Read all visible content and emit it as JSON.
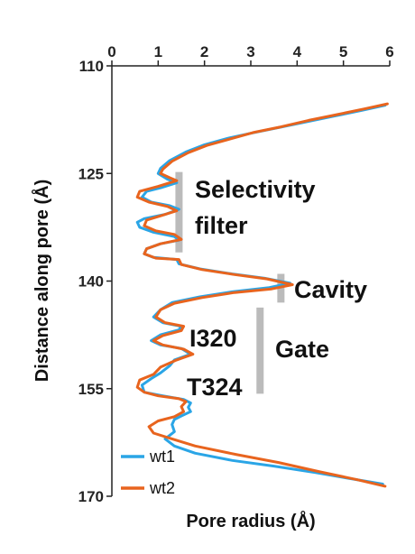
{
  "chart_data": {
    "type": "line",
    "xlabel": "Pore radius (Å)",
    "ylabel": "Distance along pore (Å)",
    "xlim": [
      0,
      6
    ],
    "ylim": [
      110,
      170
    ],
    "x_ticks": [
      "0",
      "1",
      "2",
      "3",
      "4",
      "5",
      "6"
    ],
    "y_ticks": [
      "110",
      "125",
      "140",
      "155",
      "170"
    ],
    "x_tick_values": [
      0,
      1,
      2,
      3,
      4,
      5,
      6
    ],
    "y_tick_values": [
      110,
      125,
      140,
      155,
      170
    ],
    "x_axis_position": "top",
    "y_inverted": true,
    "grid": false,
    "legend_position": "bottom-left",
    "series": [
      {
        "name": "wt1",
        "color": "#2aa5e6",
        "points": [
          [
            5.9,
            115.5
          ],
          [
            5.4,
            116.2
          ],
          [
            4.8,
            117.0
          ],
          [
            4.2,
            117.8
          ],
          [
            3.6,
            118.6
          ],
          [
            3.0,
            119.4
          ],
          [
            2.5,
            120.1
          ],
          [
            2.0,
            121.0
          ],
          [
            1.6,
            122.0
          ],
          [
            1.25,
            123.2
          ],
          [
            1.05,
            124.3
          ],
          [
            1.0,
            125.0
          ],
          [
            1.2,
            125.8
          ],
          [
            1.4,
            126.3
          ],
          [
            1.05,
            127.0
          ],
          [
            0.75,
            127.5
          ],
          [
            0.65,
            128.3
          ],
          [
            0.85,
            129.0
          ],
          [
            1.25,
            129.5
          ],
          [
            1.45,
            130.0
          ],
          [
            1.15,
            130.7
          ],
          [
            0.7,
            131.3
          ],
          [
            0.55,
            131.8
          ],
          [
            0.6,
            132.5
          ],
          [
            0.9,
            133.2
          ],
          [
            1.35,
            133.8
          ],
          [
            1.45,
            134.3
          ],
          [
            1.05,
            134.8
          ],
          [
            0.75,
            135.5
          ],
          [
            0.7,
            136.2
          ],
          [
            0.9,
            136.7
          ],
          [
            1.4,
            137.0
          ],
          [
            1.45,
            137.6
          ],
          [
            1.9,
            138.3
          ],
          [
            2.6,
            139.0
          ],
          [
            3.3,
            139.6
          ],
          [
            3.85,
            140.3
          ],
          [
            3.4,
            140.9
          ],
          [
            2.6,
            141.5
          ],
          [
            1.9,
            142.2
          ],
          [
            1.3,
            143.0
          ],
          [
            1.05,
            144.0
          ],
          [
            0.9,
            145.0
          ],
          [
            1.1,
            145.8
          ],
          [
            1.5,
            146.3
          ],
          [
            1.45,
            146.8
          ],
          [
            1.05,
            147.5
          ],
          [
            0.85,
            148.3
          ],
          [
            1.05,
            148.9
          ],
          [
            1.5,
            149.4
          ],
          [
            1.7,
            150.2
          ],
          [
            1.35,
            151.0
          ],
          [
            1.25,
            151.8
          ],
          [
            1.05,
            152.8
          ],
          [
            0.85,
            153.6
          ],
          [
            0.65,
            154.5
          ],
          [
            0.7,
            155.5
          ],
          [
            1.1,
            156.0
          ],
          [
            1.55,
            156.5
          ],
          [
            1.7,
            157.0
          ],
          [
            1.65,
            157.6
          ],
          [
            1.7,
            158.2
          ],
          [
            1.5,
            158.8
          ],
          [
            1.35,
            159.3
          ],
          [
            1.3,
            160.0
          ],
          [
            1.35,
            161.0
          ],
          [
            1.15,
            162.0
          ],
          [
            1.35,
            163.0
          ],
          [
            1.8,
            164.0
          ],
          [
            2.6,
            165.0
          ],
          [
            3.5,
            165.8
          ],
          [
            4.4,
            166.7
          ],
          [
            5.2,
            167.6
          ],
          [
            5.85,
            168.3
          ]
        ]
      },
      {
        "name": "wt2",
        "color": "#e8641e",
        "points": [
          [
            5.95,
            115.3
          ],
          [
            5.45,
            116.0
          ],
          [
            4.85,
            116.8
          ],
          [
            4.25,
            117.6
          ],
          [
            3.65,
            118.5
          ],
          [
            3.05,
            119.3
          ],
          [
            2.55,
            120.2
          ],
          [
            2.05,
            121.1
          ],
          [
            1.65,
            122.1
          ],
          [
            1.3,
            123.3
          ],
          [
            1.1,
            124.4
          ],
          [
            1.05,
            125.0
          ],
          [
            1.25,
            125.6
          ],
          [
            1.4,
            126.0
          ],
          [
            1.0,
            126.8
          ],
          [
            0.6,
            127.5
          ],
          [
            0.55,
            128.3
          ],
          [
            0.8,
            129.0
          ],
          [
            1.2,
            129.6
          ],
          [
            1.4,
            130.2
          ],
          [
            1.1,
            130.8
          ],
          [
            0.75,
            131.5
          ],
          [
            0.7,
            132.3
          ],
          [
            0.95,
            133.0
          ],
          [
            1.35,
            133.5
          ],
          [
            1.5,
            134.2
          ],
          [
            1.05,
            134.8
          ],
          [
            0.75,
            135.5
          ],
          [
            0.7,
            136.2
          ],
          [
            0.95,
            136.8
          ],
          [
            1.45,
            137.0
          ],
          [
            1.5,
            137.7
          ],
          [
            1.95,
            138.4
          ],
          [
            2.65,
            139.1
          ],
          [
            3.35,
            139.7
          ],
          [
            3.9,
            140.5
          ],
          [
            3.45,
            141.1
          ],
          [
            2.65,
            141.6
          ],
          [
            1.95,
            142.3
          ],
          [
            1.35,
            143.1
          ],
          [
            1.05,
            144.0
          ],
          [
            0.95,
            145.0
          ],
          [
            1.15,
            145.8
          ],
          [
            1.55,
            146.3
          ],
          [
            1.5,
            146.9
          ],
          [
            1.1,
            147.6
          ],
          [
            0.9,
            148.3
          ],
          [
            1.1,
            148.9
          ],
          [
            1.55,
            149.5
          ],
          [
            1.75,
            150.2
          ],
          [
            1.4,
            151.0
          ],
          [
            1.05,
            152.0
          ],
          [
            0.9,
            153.0
          ],
          [
            0.6,
            153.8
          ],
          [
            0.55,
            154.8
          ],
          [
            0.7,
            155.5
          ],
          [
            1.0,
            156.0
          ],
          [
            1.45,
            156.4
          ],
          [
            1.6,
            156.8
          ],
          [
            1.5,
            157.5
          ],
          [
            1.55,
            158.2
          ],
          [
            1.35,
            158.9
          ],
          [
            1.0,
            159.5
          ],
          [
            0.8,
            160.3
          ],
          [
            0.9,
            161.2
          ],
          [
            1.3,
            162.0
          ],
          [
            1.8,
            163.0
          ],
          [
            2.7,
            164.2
          ],
          [
            3.6,
            165.3
          ],
          [
            4.5,
            166.6
          ],
          [
            5.3,
            167.7
          ],
          [
            5.9,
            168.6
          ]
        ]
      }
    ],
    "annotations": [
      {
        "text_lines": [
          "Selectivity",
          "filter"
        ],
        "bar": {
          "x": 1.45,
          "y": [
            124.8,
            136.0
          ]
        },
        "bar_color": "#bbbbbb"
      },
      {
        "text_lines": [
          "Cavity"
        ],
        "bar": {
          "x": 3.65,
          "y": [
            139.0,
            143.0
          ]
        },
        "bar_color": "#bbbbbb"
      },
      {
        "text_lines": [
          "Gate"
        ],
        "bar": {
          "x": 3.2,
          "y": [
            143.7,
            155.7
          ]
        },
        "bar_color": "#bbbbbb"
      },
      {
        "text_lines": [
          "I320"
        ]
      },
      {
        "text_lines": [
          "T324"
        ]
      }
    ]
  }
}
